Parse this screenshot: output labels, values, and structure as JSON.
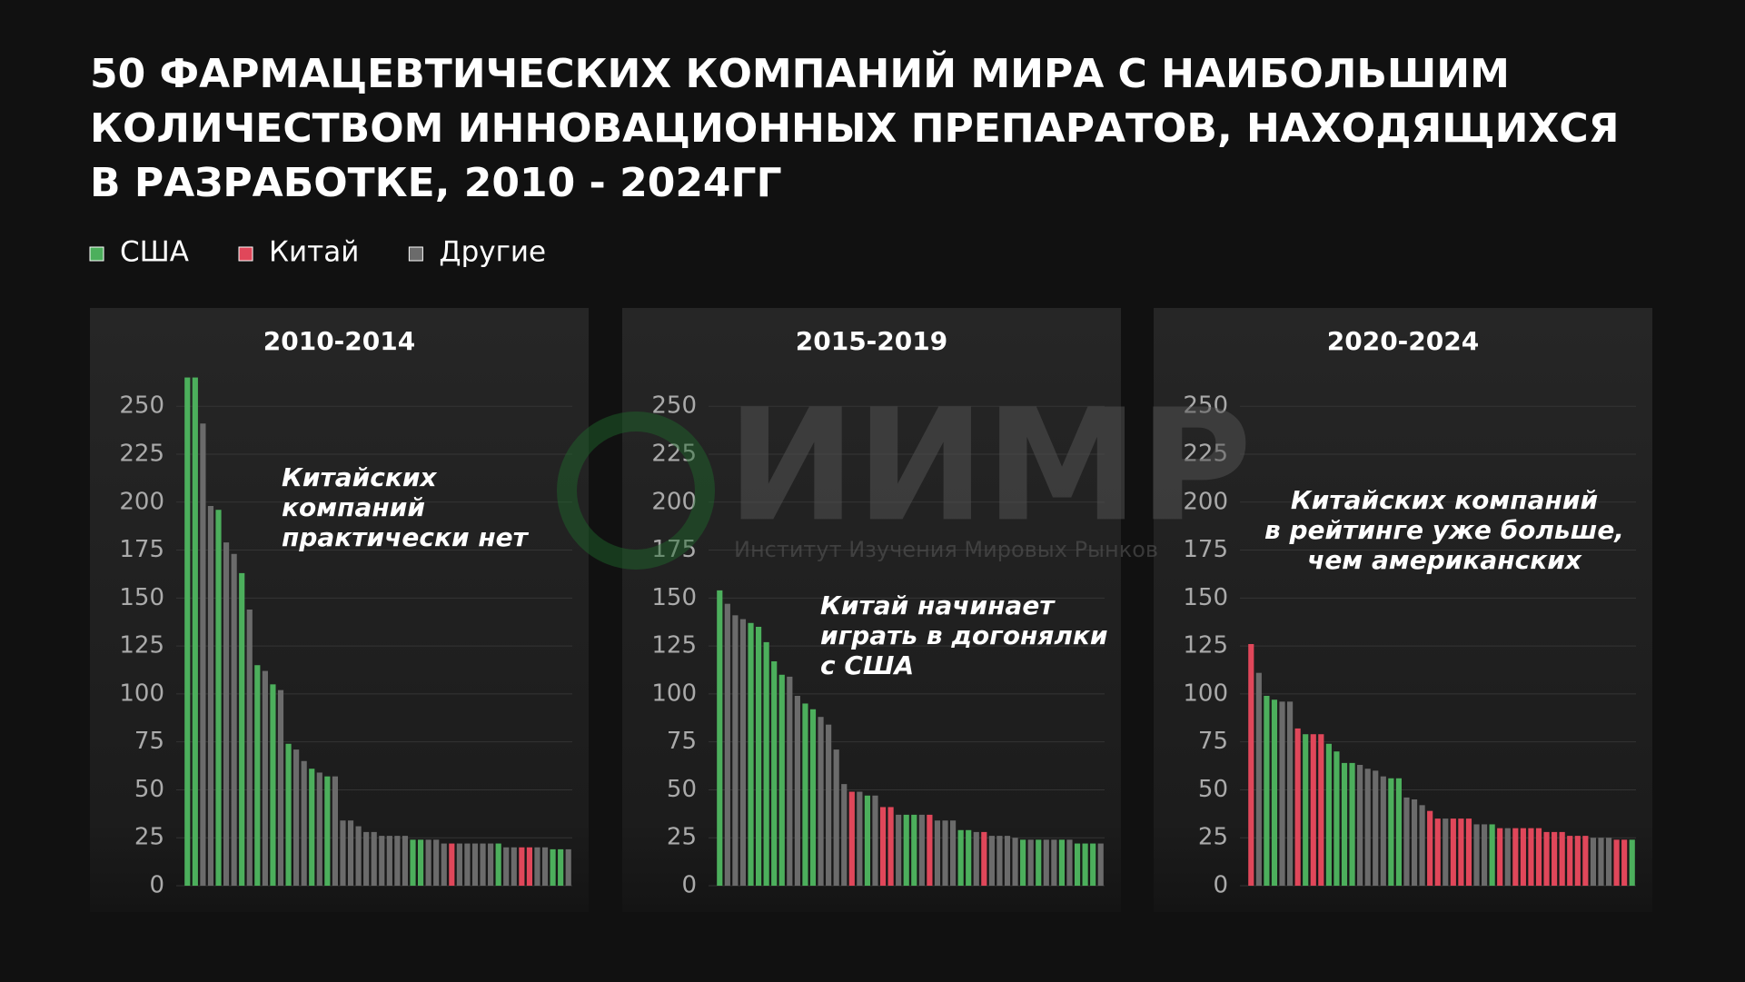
{
  "title": [
    "50 ФАРМАЦЕВТИЧЕСКИХ КОМПАНИЙ МИРА С НАИБОЛЬШИМ",
    "КОЛИЧЕСТВОМ ИННОВАЦИОННЫХ ПРЕПАРАТОВ, НАХОДЯЩИХСЯ",
    "В РАЗРАБОТКЕ, 2010 - 2024ГГ"
  ],
  "legend": [
    {
      "name": "США",
      "color": "#4caf5c"
    },
    {
      "name": "Китай",
      "color": "#e0475a"
    },
    {
      "name": "Другие",
      "color": "#6b6b6b"
    }
  ],
  "watermark": {
    "text": "ИИМР",
    "subtitle": "Институт Изучения Мировых Рынков"
  },
  "chart_data": [
    {
      "type": "bar",
      "title": "2010-2014",
      "annotation": [
        "Китайских",
        "компаний",
        "практически нет"
      ],
      "ylim": [
        0,
        270
      ],
      "yticks": [
        0,
        25,
        50,
        75,
        100,
        125,
        150,
        175,
        200,
        225,
        250
      ],
      "grid": true,
      "values": [
        265,
        265,
        241,
        198,
        196,
        179,
        173,
        163,
        144,
        115,
        112,
        105,
        102,
        74,
        71,
        65,
        61,
        59,
        57,
        57,
        34,
        34,
        31,
        28,
        28,
        26,
        26,
        26,
        26,
        24,
        24,
        24,
        24,
        22,
        22,
        22,
        22,
        22,
        22,
        22,
        22,
        20,
        20,
        20,
        20,
        20,
        20,
        19,
        19,
        19
      ],
      "colors": [
        "#4caf5c",
        "#4caf5c",
        "#6b6b6b",
        "#6b6b6b",
        "#4caf5c",
        "#6b6b6b",
        "#6b6b6b",
        "#4caf5c",
        "#6b6b6b",
        "#4caf5c",
        "#6b6b6b",
        "#4caf5c",
        "#6b6b6b",
        "#4caf5c",
        "#6b6b6b",
        "#6b6b6b",
        "#4caf5c",
        "#6b6b6b",
        "#4caf5c",
        "#6b6b6b",
        "#6b6b6b",
        "#6b6b6b",
        "#6b6b6b",
        "#6b6b6b",
        "#6b6b6b",
        "#6b6b6b",
        "#6b6b6b",
        "#6b6b6b",
        "#6b6b6b",
        "#4caf5c",
        "#4caf5c",
        "#6b6b6b",
        "#6b6b6b",
        "#6b6b6b",
        "#e0475a",
        "#6b6b6b",
        "#6b6b6b",
        "#6b6b6b",
        "#6b6b6b",
        "#6b6b6b",
        "#4caf5c",
        "#6b6b6b",
        "#6b6b6b",
        "#e0475a",
        "#e0475a",
        "#6b6b6b",
        "#6b6b6b",
        "#4caf5c",
        "#4caf5c",
        "#6b6b6b"
      ]
    },
    {
      "type": "bar",
      "title": "2015-2019",
      "annotation": [
        "Китай начинает",
        "играть в догонялки",
        "с США"
      ],
      "ylim": [
        0,
        270
      ],
      "yticks": [
        0,
        25,
        50,
        75,
        100,
        125,
        150,
        175,
        200,
        225,
        250
      ],
      "grid": true,
      "values": [
        154,
        147,
        141,
        139,
        137,
        135,
        127,
        117,
        110,
        109,
        99,
        95,
        92,
        88,
        84,
        71,
        53,
        49,
        49,
        47,
        47,
        41,
        41,
        37,
        37,
        37,
        37,
        37,
        34,
        34,
        34,
        29,
        29,
        28,
        28,
        26,
        26,
        26,
        25,
        24,
        24,
        24,
        24,
        24,
        24,
        24,
        22,
        22,
        22,
        22
      ],
      "colors": [
        "#4caf5c",
        "#6b6b6b",
        "#6b6b6b",
        "#6b6b6b",
        "#4caf5c",
        "#4caf5c",
        "#4caf5c",
        "#4caf5c",
        "#4caf5c",
        "#6b6b6b",
        "#6b6b6b",
        "#4caf5c",
        "#4caf5c",
        "#6b6b6b",
        "#6b6b6b",
        "#6b6b6b",
        "#6b6b6b",
        "#e0475a",
        "#6b6b6b",
        "#4caf5c",
        "#6b6b6b",
        "#e0475a",
        "#e0475a",
        "#6b6b6b",
        "#4caf5c",
        "#4caf5c",
        "#6b6b6b",
        "#e0475a",
        "#6b6b6b",
        "#6b6b6b",
        "#6b6b6b",
        "#4caf5c",
        "#4caf5c",
        "#6b6b6b",
        "#e0475a",
        "#6b6b6b",
        "#6b6b6b",
        "#6b6b6b",
        "#6b6b6b",
        "#4caf5c",
        "#6b6b6b",
        "#4caf5c",
        "#6b6b6b",
        "#6b6b6b",
        "#4caf5c",
        "#6b6b6b",
        "#4caf5c",
        "#4caf5c",
        "#4caf5c",
        "#6b6b6b"
      ]
    },
    {
      "type": "bar",
      "title": "2020-2024",
      "annotation": [
        "Китайских компаний",
        "в рейтинге уже больше,",
        "чем американских"
      ],
      "ylim": [
        0,
        270
      ],
      "yticks": [
        0,
        25,
        50,
        75,
        100,
        125,
        150,
        175,
        200,
        225,
        250
      ],
      "grid": true,
      "values": [
        126,
        111,
        99,
        97,
        96,
        96,
        82,
        79,
        79,
        79,
        74,
        70,
        64,
        64,
        63,
        61,
        60,
        57,
        56,
        56,
        46,
        45,
        42,
        39,
        35,
        35,
        35,
        35,
        35,
        32,
        32,
        32,
        30,
        30,
        30,
        30,
        30,
        30,
        28,
        28,
        28,
        26,
        26,
        26,
        25,
        25,
        25,
        24,
        24,
        24
      ],
      "colors": [
        "#e0475a",
        "#6b6b6b",
        "#4caf5c",
        "#4caf5c",
        "#6b6b6b",
        "#6b6b6b",
        "#e0475a",
        "#4caf5c",
        "#e0475a",
        "#e0475a",
        "#4caf5c",
        "#4caf5c",
        "#4caf5c",
        "#4caf5c",
        "#6b6b6b",
        "#6b6b6b",
        "#6b6b6b",
        "#6b6b6b",
        "#4caf5c",
        "#4caf5c",
        "#6b6b6b",
        "#6b6b6b",
        "#6b6b6b",
        "#e0475a",
        "#e0475a",
        "#6b6b6b",
        "#e0475a",
        "#e0475a",
        "#e0475a",
        "#6b6b6b",
        "#6b6b6b",
        "#4caf5c",
        "#e0475a",
        "#6b6b6b",
        "#e0475a",
        "#e0475a",
        "#e0475a",
        "#e0475a",
        "#e0475a",
        "#e0475a",
        "#e0475a",
        "#e0475a",
        "#e0475a",
        "#e0475a",
        "#6b6b6b",
        "#6b6b6b",
        "#6b6b6b",
        "#e0475a",
        "#e0475a",
        "#4caf5c"
      ]
    }
  ]
}
